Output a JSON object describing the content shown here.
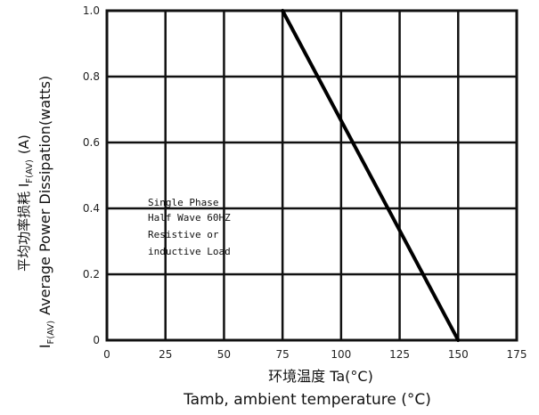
{
  "chart_data": {
    "type": "line",
    "x": [
      75,
      150
    ],
    "series": [
      {
        "values": [
          1.0,
          0
        ]
      }
    ],
    "xlim": [
      0,
      175
    ],
    "ylim": [
      0,
      1.0
    ],
    "x_ticks": [
      "0",
      "25",
      "50",
      "75",
      "100",
      "125",
      "150",
      "175"
    ],
    "y_ticks": [
      "0",
      "0.2",
      "0.4",
      "0.6",
      "0.8",
      "1.0"
    ],
    "grid": true,
    "xlabel_cn": "环境温度 Ta(°C)",
    "xlabel": "Tamb, ambient temperature (°C)",
    "ylabel_cn": "平均功率损耗 I",
    "ylabel_sub_cn": "F(AV)",
    "ylabel_unit_cn": "(A)",
    "ylabel_prefix": "I",
    "ylabel_prefix_sub": "F(AV)",
    "ylabel": "Average Power Dissipation(watts)",
    "annotation": [
      "Single Phase",
      "Half Wave 60HZ",
      "Resistive or",
      "inductive Load"
    ]
  }
}
